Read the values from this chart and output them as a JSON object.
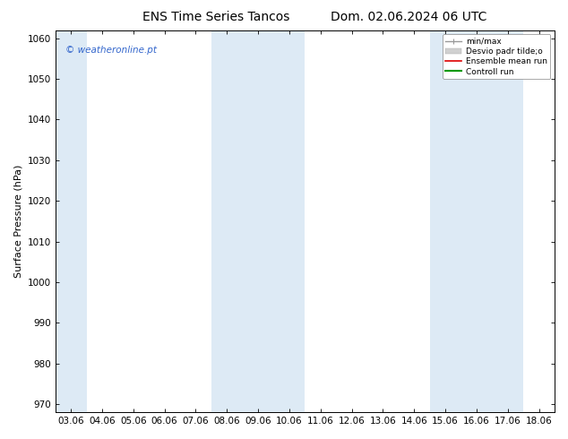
{
  "title_left": "ENS Time Series Tancos",
  "title_right": "Dom. 02.06.2024 06 UTC",
  "ylabel": "Surface Pressure (hPa)",
  "ylim": [
    968,
    1062
  ],
  "yticks": [
    970,
    980,
    990,
    1000,
    1010,
    1020,
    1030,
    1040,
    1050,
    1060
  ],
  "x_labels": [
    "03.06",
    "04.06",
    "05.06",
    "06.06",
    "07.06",
    "08.06",
    "09.06",
    "10.06",
    "11.06",
    "12.06",
    "13.06",
    "14.06",
    "15.06",
    "16.06",
    "17.06",
    "18.06"
  ],
  "shade_groups": [
    [
      0
    ],
    [
      5,
      6,
      7
    ],
    [
      12,
      13,
      14
    ]
  ],
  "shade_color": "#ddeaf5",
  "background_color": "#ffffff",
  "watermark": "© weatheronline.pt",
  "watermark_color": "#3366cc",
  "legend_labels": [
    "min/max",
    "Desvio padr tilde;o",
    "Ensemble mean run",
    "Controll run"
  ],
  "legend_line_colors": [
    "#999999",
    "#cccccc",
    "#dd0000",
    "#009900"
  ],
  "title_fontsize": 10,
  "tick_fontsize": 7.5,
  "ylabel_fontsize": 8,
  "watermark_fontsize": 7.5
}
